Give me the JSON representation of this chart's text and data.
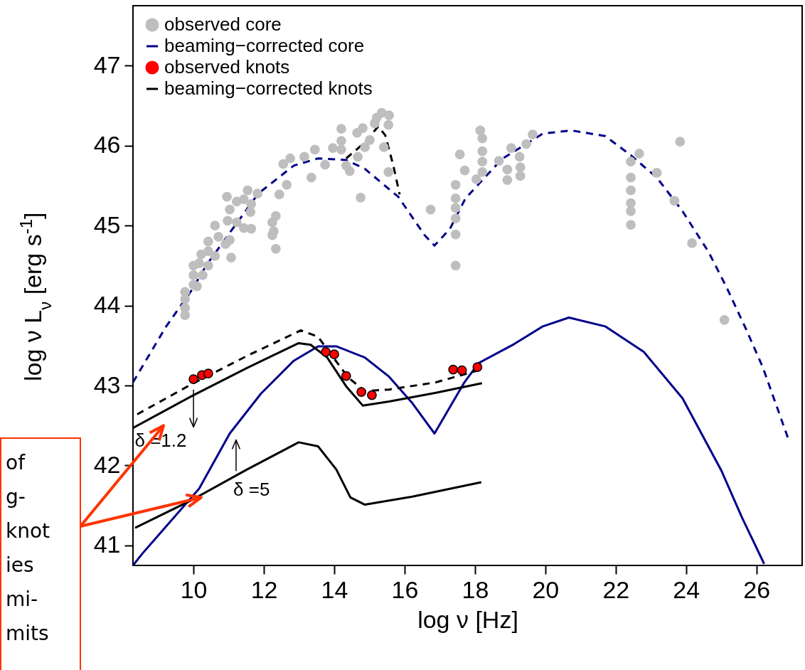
{
  "chart_data": {
    "type": "line",
    "xlabel": "log ν [Hz]",
    "ylabel": "log ν L$_{ν}$ [erg s$^{-1}$]",
    "xlim": [
      8.28,
      27.3
    ],
    "ylim": [
      40.75,
      47.75
    ],
    "xticks": [
      10,
      12,
      14,
      16,
      18,
      20,
      22,
      24,
      26
    ],
    "yticks": [
      41,
      42,
      43,
      44,
      45,
      46,
      47
    ],
    "legend": "top left",
    "series": [
      {
        "type": "scatter",
        "marker": "circle",
        "name": "observed core",
        "color": "#bebebe",
        "x": [
          9.76,
          9.76,
          9.76,
          9.76,
          10,
          10,
          10,
          10.1,
          10.16,
          10.26,
          10.22,
          10.42,
          10.42,
          10.42,
          10.61,
          10.61,
          10.71,
          10.91,
          11.07,
          11.03,
          11.03,
          10.97,
          11.23,
          11.23,
          10.95,
          11.43,
          11.43,
          11.54,
          11.64,
          11.64,
          11.62,
          11.82,
          12.24,
          12.24,
          12.28,
          12.34,
          12.34,
          12.44,
          12.65,
          12.55,
          12.75,
          13.15,
          13.35,
          13.45,
          13.74,
          13.96,
          14.2,
          14.2,
          14.2,
          14.34,
          14.44,
          14.75,
          14.67,
          14.65,
          14.81,
          14.87,
          15.01,
          15.15,
          15.21,
          15.35,
          15.56,
          15.54,
          15.41,
          15.54,
          16.74,
          17.45,
          17.45,
          17.45,
          17.45,
          17.45,
          17.45,
          17.57,
          17.71,
          18.04,
          18.15,
          18.21,
          18.21,
          18.21,
          18.21,
          18.68,
          18.92,
          18.92,
          19.03,
          19.27,
          19.29,
          19.29,
          19.46,
          19.64,
          22.43,
          22.43,
          22.43,
          22.43,
          22.43,
          22.43,
          22.67,
          23.17,
          23.67,
          23.83,
          24.17,
          25.09
        ],
        "values": [
          43.88,
          43.97,
          44.08,
          44.17,
          44.26,
          44.38,
          44.5,
          44.24,
          44.53,
          44.38,
          44.64,
          44.68,
          44.5,
          44.8,
          44.62,
          45.0,
          44.86,
          44.77,
          44.6,
          44.82,
          45.2,
          45.06,
          45.04,
          45.3,
          45.36,
          45.33,
          44.97,
          45.44,
          45.27,
          44.96,
          45.17,
          45.4,
          45.04,
          44.88,
          44.93,
          45.12,
          44.71,
          45.39,
          45.51,
          45.77,
          45.84,
          45.86,
          45.6,
          45.95,
          45.76,
          45.97,
          46.06,
          46.21,
          45.95,
          45.75,
          45.68,
          45.35,
          45.86,
          46.16,
          46.22,
          45.98,
          46.07,
          46.28,
          46.35,
          46.41,
          46.38,
          46.26,
          45.98,
          45.67,
          45.2,
          44.5,
          44.89,
          45.09,
          45.22,
          45.34,
          45.51,
          45.89,
          45.69,
          45.58,
          46.19,
          46.09,
          45.93,
          45.8,
          45.67,
          45.81,
          45.7,
          45.57,
          45.97,
          45.86,
          45.73,
          45.62,
          46.02,
          46.14,
          45.8,
          45.6,
          45.44,
          45.28,
          45.18,
          45.01,
          45.9,
          45.66,
          45.31,
          46.05,
          44.78,
          43.82
        ]
      },
      {
        "color": "#00008b",
        "line_style": "dashed",
        "x": [
          8.28,
          9.21,
          9.96,
          10.36,
          11.03,
          11.84,
          12.85,
          13.54,
          14.34,
          14.87,
          15.82,
          16.57,
          16.85,
          17.29,
          17.73,
          18.76,
          19.93,
          20.74,
          21.7,
          22.43,
          23.17,
          23.9,
          24.64,
          25.15,
          25.7,
          26.18,
          26.9
        ],
        "values": [
          43.04,
          43.73,
          44.2,
          44.5,
          44.91,
          45.4,
          45.75,
          45.84,
          45.82,
          45.71,
          45.36,
          44.88,
          44.75,
          44.96,
          45.34,
          45.83,
          46.15,
          46.19,
          46.12,
          45.88,
          45.6,
          45.18,
          44.67,
          44.23,
          43.71,
          43.23,
          42.34
        ]
      },
      {
        "color": "#000000",
        "line_style": "dashed",
        "x": [
          14.34,
          14.87,
          15.25,
          15.45,
          15.68,
          15.86
        ],
        "values": [
          45.84,
          46.04,
          46.24,
          46.13,
          45.75,
          45.39
        ]
      },
      {
        "name": "beaming−corrected core",
        "color": "#00008b",
        "line_style": "solid",
        "x": [
          8.28,
          8.55,
          10.16,
          11.03,
          11.92,
          12.85,
          13.54,
          14.06,
          14.87,
          15.56,
          16.22,
          16.85,
          17.7,
          18.1,
          19.12,
          19.93,
          20.67,
          21.7,
          22.8,
          23.9,
          25.0,
          25.59,
          26.22
        ],
        "values": [
          40.75,
          40.9,
          41.71,
          42.4,
          42.9,
          43.31,
          43.49,
          43.49,
          43.35,
          43.11,
          42.78,
          42.4,
          43.04,
          43.28,
          43.52,
          43.74,
          43.85,
          43.74,
          43.42,
          42.84,
          41.94,
          41.35,
          40.77
        ]
      },
      {
        "type": "scatter",
        "marker": "circle",
        "name": "observed knots",
        "color": "#ff0000",
        "x": [
          10,
          10.24,
          10.42,
          13.76,
          14,
          14.34,
          14.77,
          15.07,
          17.38,
          17.63,
          18.07
        ],
        "values": [
          43.08,
          43.13,
          43.15,
          43.42,
          43.39,
          43.12,
          42.92,
          42.88,
          43.2,
          43.19,
          43.23
        ]
      },
      {
        "color": "#000000",
        "line_style": "dashed",
        "x": [
          8.4,
          9.96,
          11.52,
          13.05,
          13.54,
          13.94,
          14.4,
          14.87,
          15.56,
          16.89,
          17.94,
          18.2
        ],
        "values": [
          42.64,
          43.02,
          43.37,
          43.69,
          43.61,
          43.37,
          43.1,
          42.93,
          42.95,
          43.04,
          43.17,
          43.2
        ]
      },
      {
        "name": "beaming−corrected knots",
        "color": "#000000",
        "line_style": "solid",
        "x": [
          8.28,
          9.96,
          11.52,
          12.99,
          13.33,
          13.8,
          14.34,
          14.81,
          15.56,
          16.89,
          18.2
        ],
        "values": [
          42.47,
          42.87,
          43.22,
          43.53,
          43.51,
          43.35,
          42.99,
          42.75,
          42.8,
          42.91,
          43.03
        ]
      },
      {
        "color": "#000000",
        "line_style": "solid",
        "x": [
          8.34,
          9.96,
          11.52,
          12.99,
          13.54,
          14.06,
          14.46,
          14.87,
          16.22,
          18.18
        ],
        "values": [
          41.22,
          41.57,
          41.95,
          42.29,
          42.24,
          41.95,
          41.6,
          41.51,
          41.61,
          41.79
        ]
      }
    ],
    "annotations": [
      "δ =1.2",
      "δ =5",
      "of\ng-\nknot\nies\nmi-\nmits"
    ]
  }
}
